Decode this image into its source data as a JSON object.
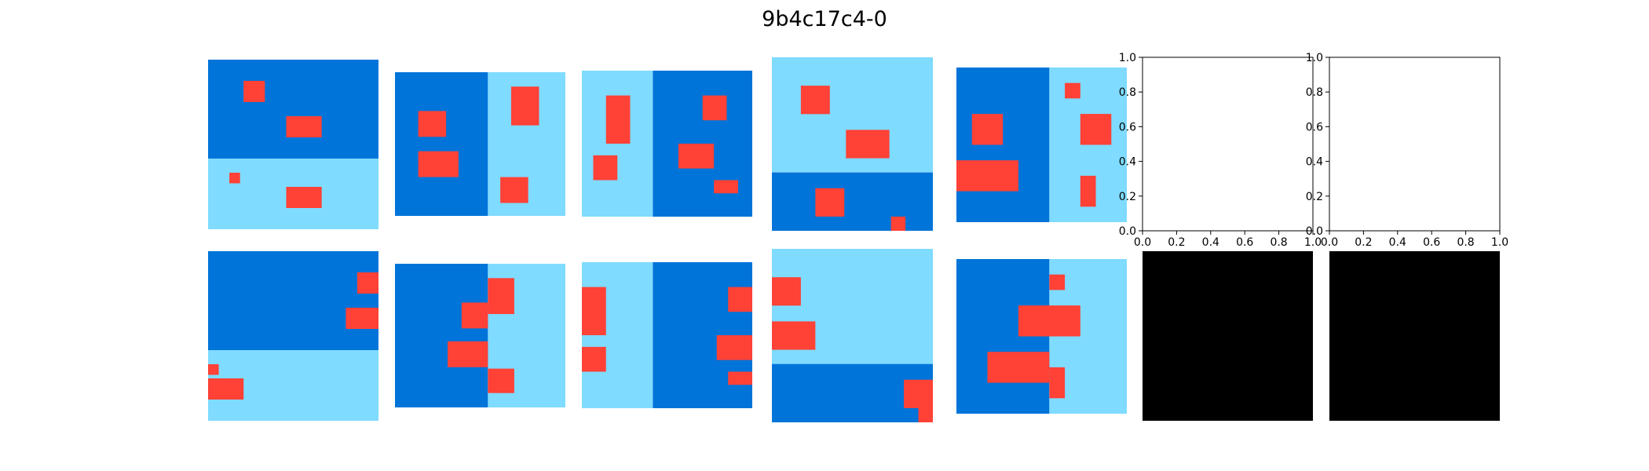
{
  "title": "9b4c17c4-0",
  "colors": {
    "dark": "#0074D9",
    "light": "#7FDBFF",
    "red": "#FF4136",
    "black": "#000000",
    "white": "#ffffff"
  },
  "panels": [
    {
      "name": "pair-1-input",
      "bg": [
        [
          "dark",
          0,
          0,
          12,
          7
        ],
        [
          "light",
          0,
          7,
          12,
          5
        ]
      ],
      "reds": [
        [
          2.5,
          1.5,
          1.5,
          1.5
        ],
        [
          5.5,
          4,
          2.5,
          1.5
        ],
        [
          1.5,
          8,
          0.75,
          0.75
        ],
        [
          5.5,
          9,
          2.5,
          1.5
        ]
      ]
    },
    {
      "name": "pair-2-input",
      "bg": [
        [
          "dark",
          0,
          0,
          6,
          10
        ],
        [
          "light",
          6,
          0,
          5,
          10
        ]
      ],
      "reds": [
        [
          1.5,
          2.7,
          1.8,
          1.8
        ],
        [
          1.5,
          5.5,
          2.6,
          1.8
        ],
        [
          7.5,
          1,
          1.8,
          2.7
        ],
        [
          6.8,
          7.3,
          1.8,
          1.8
        ]
      ]
    },
    {
      "name": "pair-3-input",
      "bg": [
        [
          "light",
          0,
          0,
          5,
          10
        ],
        [
          "dark",
          5,
          0,
          7,
          10
        ]
      ],
      "reds": [
        [
          1.7,
          1.7,
          1.7,
          3.3
        ],
        [
          0.8,
          5.8,
          1.7,
          1.7
        ],
        [
          8.5,
          1.7,
          1.7,
          1.7
        ],
        [
          6.8,
          5,
          2.5,
          1.7
        ],
        [
          9.3,
          7.5,
          1.7,
          0.9
        ]
      ]
    },
    {
      "name": "pair-4-input",
      "bg": [
        [
          "light",
          0,
          0,
          10,
          7.3
        ],
        [
          "dark",
          0,
          7.3,
          10,
          3.7
        ]
      ],
      "reds": [
        [
          1.8,
          1.8,
          1.8,
          1.8
        ],
        [
          4.6,
          4.6,
          2.7,
          1.8
        ],
        [
          2.7,
          8.3,
          1.8,
          1.8
        ],
        [
          7.4,
          10.1,
          0.9,
          0.9
        ]
      ]
    },
    {
      "name": "pair-5-input",
      "bg": [
        [
          "dark",
          0,
          0,
          6,
          10
        ],
        [
          "light",
          6,
          0,
          5,
          10
        ]
      ],
      "reds": [
        [
          1,
          3,
          2,
          2
        ],
        [
          0,
          6,
          4,
          2
        ],
        [
          7,
          1,
          1,
          1
        ],
        [
          8,
          3,
          2,
          2
        ],
        [
          8,
          7,
          1,
          2
        ]
      ]
    },
    {
      "name": "pair-1-output",
      "bg": [
        [
          "dark",
          0,
          0,
          12,
          7
        ],
        [
          "light",
          0,
          7,
          12,
          5
        ]
      ],
      "reds": [
        [
          10.5,
          1.5,
          1.5,
          1.5
        ],
        [
          9.7,
          4,
          2.3,
          1.5
        ],
        [
          0,
          8,
          0.75,
          0.75
        ],
        [
          0,
          9,
          2.5,
          1.5
        ]
      ]
    },
    {
      "name": "pair-2-output",
      "bg": [
        [
          "dark",
          0,
          0,
          6,
          10
        ],
        [
          "light",
          6,
          0,
          5,
          10
        ]
      ],
      "reds": [
        [
          6,
          1,
          1.7,
          2.5
        ],
        [
          4.3,
          2.7,
          1.7,
          1.8
        ],
        [
          3.4,
          5.4,
          2.6,
          1.8
        ],
        [
          6,
          7.3,
          1.7,
          1.7
        ]
      ]
    },
    {
      "name": "pair-3-output",
      "bg": [
        [
          "light",
          0,
          0,
          5,
          10
        ],
        [
          "dark",
          5,
          0,
          7,
          10
        ]
      ],
      "reds": [
        [
          0,
          1.7,
          1.7,
          3.3
        ],
        [
          0,
          5.8,
          1.7,
          1.7
        ],
        [
          10.3,
          1.7,
          1.7,
          1.7
        ],
        [
          9.5,
          5,
          2.5,
          1.7
        ],
        [
          10.3,
          7.5,
          1.7,
          0.9
        ]
      ]
    },
    {
      "name": "pair-4-output",
      "bg": [
        [
          "light",
          0,
          0,
          10,
          7.3
        ],
        [
          "dark",
          0,
          7.3,
          10,
          3.7
        ]
      ],
      "reds": [
        [
          0,
          1.8,
          1.8,
          1.8
        ],
        [
          0,
          4.6,
          2.7,
          1.8
        ],
        [
          8.2,
          8.3,
          1.8,
          1.8
        ],
        [
          9.1,
          9.2,
          0.9,
          1.8
        ]
      ]
    },
    {
      "name": "pair-5-output",
      "bg": [
        [
          "dark",
          0,
          0,
          6,
          10
        ],
        [
          "light",
          6,
          0,
          5,
          10
        ]
      ],
      "reds": [
        [
          6,
          1,
          1,
          1
        ],
        [
          4,
          3,
          4,
          2
        ],
        [
          2,
          6,
          4,
          2
        ],
        [
          6,
          7,
          1,
          2
        ]
      ]
    }
  ],
  "axes": {
    "ticks": [
      "0.0",
      "0.2",
      "0.4",
      "0.6",
      "0.8",
      "1.0"
    ],
    "xlim": [
      0,
      1
    ],
    "ylim": [
      0,
      1
    ]
  },
  "black_panels": [
    "test-output-1",
    "test-output-2"
  ]
}
